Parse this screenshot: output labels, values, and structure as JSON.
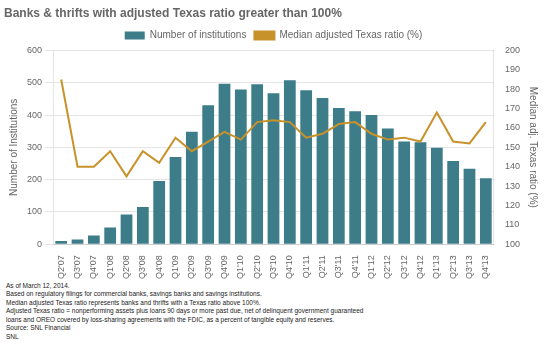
{
  "chart_data": {
    "type": "bar",
    "title": "Banks & thrifts with adjusted Texas ratio greater than 100%",
    "categories": [
      "Q2'07",
      "Q3'07",
      "Q4'07",
      "Q1'08",
      "Q2'08",
      "Q3'08",
      "Q4'08",
      "Q1'09",
      "Q2'09",
      "Q3'09",
      "Q4'09",
      "Q1'10",
      "Q2'10",
      "Q3'10",
      "Q4'10",
      "Q1'11",
      "Q2'11",
      "Q3'11",
      "Q4'11",
      "Q1'12",
      "Q2'12",
      "Q3'12",
      "Q4'12",
      "Q1'13",
      "Q2'13",
      "Q3'13",
      "Q4'13"
    ],
    "series": [
      {
        "name": "Number of institutions",
        "type": "bar",
        "color": "#3d7d8a",
        "values": [
          10,
          15,
          27,
          52,
          92,
          115,
          196,
          270,
          348,
          430,
          497,
          479,
          495,
          467,
          508,
          477,
          453,
          422,
          412,
          400,
          358,
          318,
          316,
          299,
          258,
          234,
          204
        ]
      },
      {
        "name": "Median adjusted Texas ratio (%)",
        "type": "line",
        "color": "#c8922a",
        "axis": "y2",
        "values": [
          185,
          140,
          140,
          148,
          135,
          148,
          142,
          155,
          148,
          153,
          158,
          154,
          163,
          164,
          163,
          155,
          157,
          162,
          163,
          157,
          154,
          155,
          153,
          168,
          153,
          152,
          163
        ]
      }
    ],
    "ylabel": "Number of Institutions",
    "y2label": "Median adj. Texas ratio (%)",
    "ylim": [
      0,
      600
    ],
    "yticks": [
      0,
      100,
      200,
      300,
      400,
      500,
      600
    ],
    "y2lim": [
      100,
      200
    ],
    "y2ticks": [
      100,
      110,
      120,
      130,
      140,
      150,
      160,
      170,
      180,
      190,
      200
    ],
    "grid": true,
    "legend": "top",
    "annotations": [
      "As of March 12, 2014.",
      "Based on regulatory filings for commercial banks, savings banks and savings institutions.",
      "Median adjusted Texas ratio represents banks and thrifts with a Texas ratio above 100%.",
      "Adjusted Texas ratio = nonperforming assets plus loans 90 days or more past due, net of delinquent government guaranteed",
      "loans and OREO covered by loss-sharing agreements with the FDIC, as a percent of tangible equity and reserves.",
      "Source: SNL Financial",
      "SNL"
    ]
  }
}
